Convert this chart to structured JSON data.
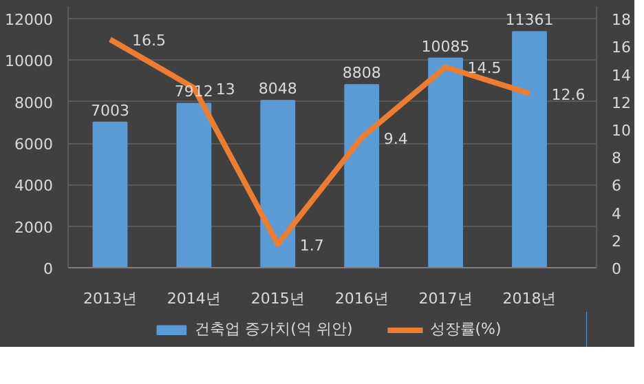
{
  "chart_data": {
    "type": "bar",
    "categories": [
      "2013년",
      "2014년",
      "2015년",
      "2016년",
      "2017년",
      "2018년"
    ],
    "series": [
      {
        "name": "건축업 증가치(억 위안)",
        "color": "#5b9bd5",
        "values": [
          7003,
          7912,
          8048,
          8808,
          10085,
          11361
        ]
      },
      {
        "name": "성장률(%)",
        "type": "line",
        "axis": "y2",
        "color": "#ed7d31",
        "values": [
          16.5,
          13,
          1.7,
          9.4,
          14.5,
          12.6
        ]
      }
    ],
    "ylim": [
      0,
      12600
    ],
    "yticks": [
      0,
      2000,
      4000,
      6000,
      8000,
      10000,
      12000
    ],
    "y2lim": [
      0,
      18.9
    ],
    "y2ticks": [
      0,
      2,
      4,
      6,
      8,
      10,
      12,
      14,
      16,
      18
    ],
    "grid": "y",
    "legend": "bottom",
    "data_labels": true,
    "marker": "none",
    "line_style": "solid"
  }
}
